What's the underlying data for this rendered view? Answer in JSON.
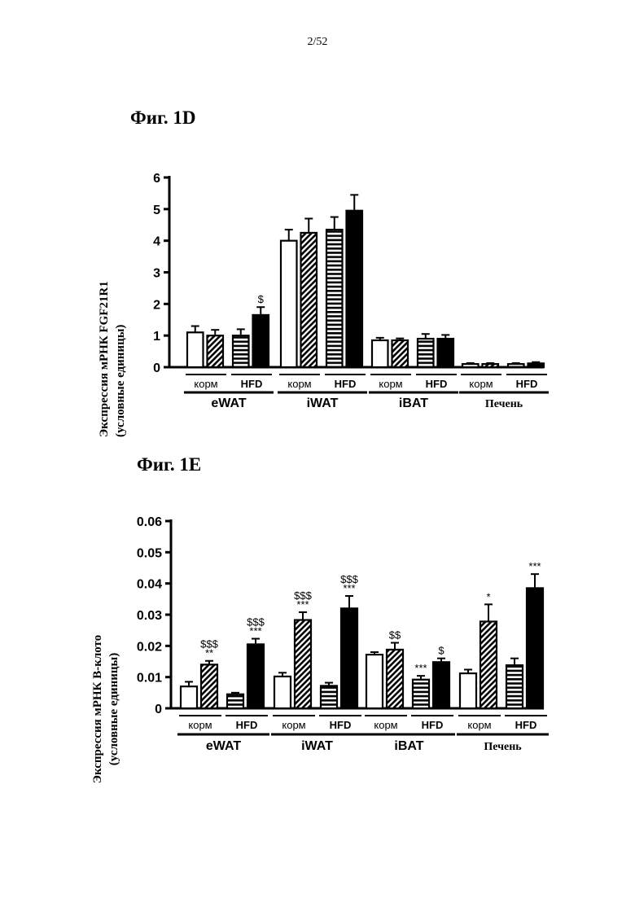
{
  "page_number": "2/52",
  "figures": [
    {
      "id": "1d",
      "title": "Фиг. 1D",
      "ylabel_line1": "Экспрессия мРНК FGF21R1",
      "ylabel_line2": "(условные единицы)"
    },
    {
      "id": "1e",
      "title": "Фиг. 1E",
      "ylabel_line1": "Экспрессия мРНК В-клото",
      "ylabel_line2": "(условные единицы)"
    }
  ],
  "chart_data": [
    {
      "type": "bar",
      "title": "Фиг. 1D",
      "ylabel": "Экспрессия мРНК FGF21R1 (условные единицы)",
      "ylim": [
        0,
        6
      ],
      "yticks": [
        "0",
        "1",
        "2",
        "3",
        "4",
        "5",
        "6"
      ],
      "categories": [
        "eWAT",
        "iWAT",
        "iBAT",
        "Печень"
      ],
      "subgroups": [
        "корм",
        "HFD"
      ],
      "bar_patterns": [
        "open",
        "hatched",
        "horizontal-striped",
        "solid"
      ],
      "values": [
        [
          1.1,
          1.0,
          1.0,
          1.65
        ],
        [
          4.0,
          4.25,
          4.35,
          4.95
        ],
        [
          0.85,
          0.85,
          0.9,
          0.9
        ],
        [
          0.1,
          0.1,
          0.1,
          0.12
        ]
      ],
      "errors": [
        [
          0.2,
          0.18,
          0.2,
          0.25
        ],
        [
          0.35,
          0.45,
          0.4,
          0.5
        ],
        [
          0.08,
          0.06,
          0.15,
          0.12
        ],
        [
          0.03,
          0.03,
          0.03,
          0.04
        ]
      ],
      "annotations": [
        [
          [],
          [],
          [],
          [
            "$"
          ]
        ],
        [
          [],
          [],
          [],
          []
        ],
        [
          [],
          [],
          [],
          []
        ],
        [
          [],
          [],
          [],
          []
        ]
      ],
      "grid": false,
      "legend": "none"
    },
    {
      "type": "bar",
      "title": "Фиг. 1E",
      "ylabel": "Экспрессия мРНК В-клото (условные единицы)",
      "ylim": [
        0,
        0.06
      ],
      "yticks": [
        "0",
        "0.01",
        "0.02",
        "0.03",
        "0.04",
        "0.05",
        "0.06"
      ],
      "categories": [
        "eWAT",
        "iWAT",
        "iBAT",
        "Печень"
      ],
      "subgroups": [
        "корм",
        "HFD"
      ],
      "bar_patterns": [
        "open",
        "hatched",
        "horizontal-striped",
        "solid"
      ],
      "values": [
        [
          0.007,
          0.014,
          0.0045,
          0.0205
        ],
        [
          0.0102,
          0.0283,
          0.0072,
          0.032
        ],
        [
          0.0172,
          0.0188,
          0.0092,
          0.0148
        ],
        [
          0.0112,
          0.0278,
          0.0138,
          0.0385
        ]
      ],
      "errors": [
        [
          0.0015,
          0.0012,
          0.0005,
          0.0018
        ],
        [
          0.0012,
          0.0025,
          0.001,
          0.004
        ],
        [
          0.0008,
          0.0022,
          0.0012,
          0.0012
        ],
        [
          0.0012,
          0.0055,
          0.0022,
          0.0045
        ]
      ],
      "annotations": [
        [
          [],
          [
            "$$$",
            "**"
          ],
          [],
          [
            "$$$",
            "***"
          ]
        ],
        [
          [],
          [
            "$$$",
            "***"
          ],
          [],
          [
            "$$$",
            "***"
          ]
        ],
        [
          [],
          [
            "$$"
          ],
          [
            "***"
          ],
          [
            "$"
          ]
        ],
        [
          [],
          [
            "*"
          ],
          [],
          [
            "***"
          ]
        ]
      ],
      "grid": false,
      "legend": "none"
    }
  ]
}
